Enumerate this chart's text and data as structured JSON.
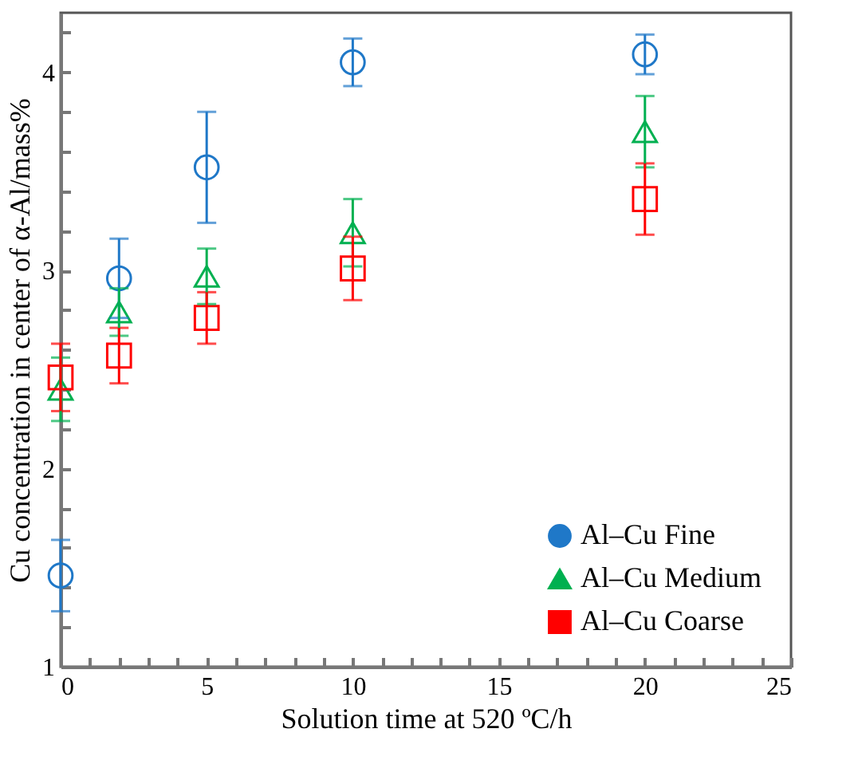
{
  "chart_data": {
    "type": "scatter",
    "xlabel": "Solution time at 520 ºC/h",
    "ylabel": "Cu concentration in center of α-Al/mass%",
    "x": [
      0,
      2,
      5,
      10,
      20
    ],
    "series": [
      {
        "name": "Al–Cu Fine",
        "color": "#1f78c8",
        "marker": "circle",
        "values": [
          1.46,
          2.96,
          3.52,
          4.05,
          4.09
        ],
        "errors": [
          0.18,
          0.2,
          0.28,
          0.12,
          0.1
        ]
      },
      {
        "name": "Al–Cu Medium",
        "color": "#00b050",
        "marker": "triangle",
        "values": [
          2.4,
          2.79,
          2.97,
          3.19,
          3.7
        ],
        "errors": [
          0.16,
          0.12,
          0.14,
          0.17,
          0.18
        ]
      },
      {
        "name": "Al–Cu Coarse",
        "color": "#ff0000",
        "marker": "square",
        "values": [
          2.46,
          2.57,
          2.76,
          3.01,
          3.36
        ],
        "errors": [
          0.17,
          0.14,
          0.13,
          0.16,
          0.18
        ]
      }
    ],
    "xlim": [
      0,
      25
    ],
    "ylim": [
      1,
      4.3
    ],
    "xticks": [
      0,
      {
        "value": 1,
        "label": null
      },
      {
        "value": 2,
        "label": null
      },
      {
        "value": 3,
        "label": null
      },
      {
        "value": 4,
        "label": null
      },
      5,
      {
        "value": 6,
        "label": null
      },
      {
        "value": 7,
        "label": null
      },
      {
        "value": 8,
        "label": null
      },
      {
        "value": 9,
        "label": null
      },
      10,
      {
        "value": 11,
        "label": null
      },
      {
        "value": 12,
        "label": null
      },
      {
        "value": 13,
        "label": null
      },
      {
        "value": 14,
        "label": null
      },
      15,
      {
        "value": 16,
        "label": null
      },
      {
        "value": 17,
        "label": null
      },
      {
        "value": 18,
        "label": null
      },
      {
        "value": 19,
        "label": null
      },
      20,
      {
        "value": 21,
        "label": null
      },
      {
        "value": 22,
        "label": null
      },
      {
        "value": 23,
        "label": null
      },
      {
        "value": 24,
        "label": null
      },
      25
    ],
    "yticks": [
      1,
      {
        "value": 1.2,
        "label": null
      },
      {
        "value": 1.4,
        "label": null
      },
      {
        "value": 1.6,
        "label": null
      },
      {
        "value": 1.8,
        "label": null
      },
      2,
      {
        "value": 2.2,
        "label": null
      },
      {
        "value": 2.4,
        "label": null
      },
      {
        "value": 2.6,
        "label": null
      },
      {
        "value": 2.8,
        "label": null
      },
      3,
      {
        "value": 3.2,
        "label": null
      },
      {
        "value": 3.4,
        "label": null
      },
      {
        "value": 3.6,
        "label": null
      },
      {
        "value": 3.8,
        "label": null
      },
      4,
      {
        "value": 4.2,
        "label": null
      }
    ],
    "grid": false,
    "legend": "bottom right"
  }
}
